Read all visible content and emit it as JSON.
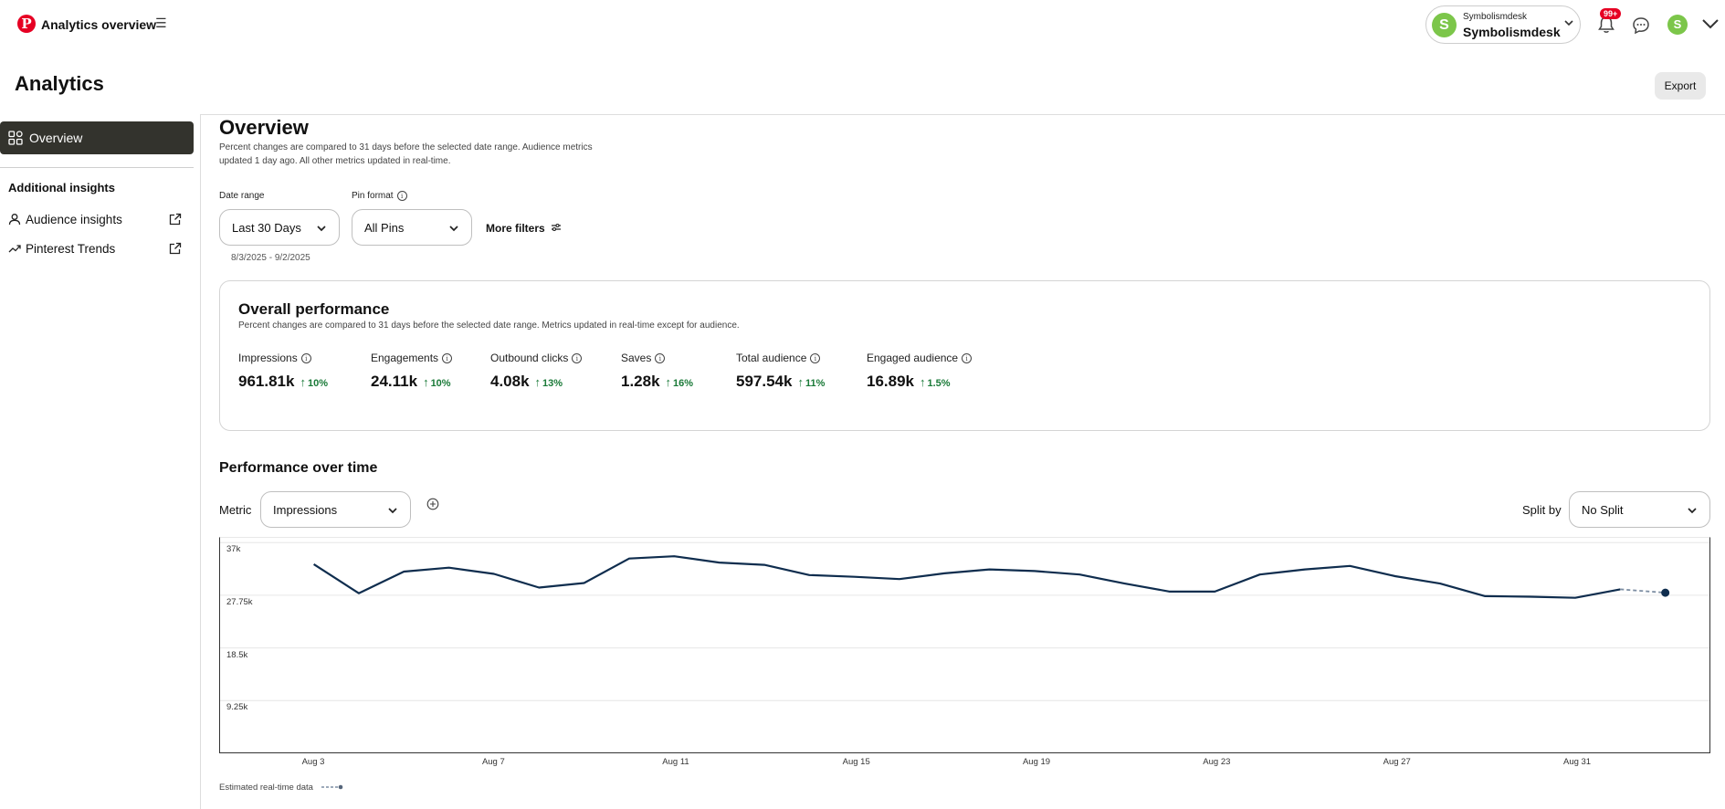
{
  "header": {
    "app_title": "Analytics overview",
    "account_small": "Symbolismdesk",
    "account_big": "Symbolismdesk",
    "avatar_letter": "S",
    "notifications_badge": "99+",
    "brand_color": "#e60023"
  },
  "page": {
    "title": "Analytics",
    "export_label": "Export"
  },
  "sidebar": {
    "overview_label": "Overview",
    "section_heading": "Additional insights",
    "items": [
      {
        "label": "Audience insights",
        "icon": "person-icon"
      },
      {
        "label": "Pinterest Trends",
        "icon": "trend-icon"
      }
    ]
  },
  "overview": {
    "title": "Overview",
    "description": "Percent changes are compared to 31 days before the selected date range. Audience metrics updated 1 day ago. All other metrics updated in real-time.",
    "filters": {
      "date_range_label": "Date range",
      "date_range_value": "Last 30 Days",
      "date_range_sub": "8/3/2025 - 9/2/2025",
      "pin_format_label": "Pin format",
      "pin_format_value": "All Pins",
      "more_filters": "More filters"
    }
  },
  "overall_performance": {
    "title": "Overall performance",
    "description": "Percent changes are compared to 31 days before the selected date range. Metrics updated in real-time except for audience.",
    "metrics": [
      {
        "label": "Impressions",
        "value": "961.81k",
        "change": "10%"
      },
      {
        "label": "Engagements",
        "value": "24.11k",
        "change": "10%"
      },
      {
        "label": "Outbound clicks",
        "value": "4.08k",
        "change": "13%"
      },
      {
        "label": "Saves",
        "value": "1.28k",
        "change": "16%"
      },
      {
        "label": "Total audience",
        "value": "597.54k",
        "change": "11%"
      },
      {
        "label": "Engaged audience",
        "value": "16.89k",
        "change": "1.5%"
      }
    ],
    "positive_color": "#1a7a38"
  },
  "performance_over_time": {
    "title": "Performance over time",
    "metric_label": "Metric",
    "metric_value": "Impressions",
    "split_label": "Split by",
    "split_value": "No Split",
    "estimated_note": "Estimated real-time data"
  },
  "chart_data": {
    "type": "line",
    "y_tick_labels": [
      "37k",
      "27.75k",
      "18.5k",
      "9.25k"
    ],
    "y_ticks": [
      37000,
      27750,
      18500,
      9250
    ],
    "ylim": [
      0,
      38000
    ],
    "x_tick_labels": [
      "Aug 3",
      "Aug 7",
      "Aug 11",
      "Aug 15",
      "Aug 19",
      "Aug 23",
      "Aug 27",
      "Aug 31"
    ],
    "x_tick_days": [
      3,
      7,
      11,
      15,
      19,
      23,
      27,
      31
    ],
    "xlim": [
      0.9,
      34.0
    ],
    "series": [
      {
        "days": [
          3,
          4,
          5,
          6,
          7,
          8,
          9,
          10,
          11,
          12,
          13,
          14,
          15,
          16,
          17,
          18,
          19,
          20,
          21,
          22,
          23,
          24,
          25,
          26,
          27,
          28,
          29,
          30,
          31,
          32
        ],
        "values": [
          33200,
          28100,
          31900,
          32600,
          31500,
          29100,
          29900,
          34200,
          34600,
          33500,
          33100,
          31300,
          31000,
          30600,
          31600,
          32300,
          32000,
          31400,
          29800,
          28400,
          28400,
          31400,
          32300,
          32900,
          31100,
          29800,
          27600,
          27500,
          27300,
          28800
        ],
        "color": "#0f2d4e"
      }
    ],
    "estimated_segment": {
      "days": [
        32,
        33
      ],
      "values": [
        28800,
        28200
      ],
      "color": "#7d8ea3"
    }
  }
}
